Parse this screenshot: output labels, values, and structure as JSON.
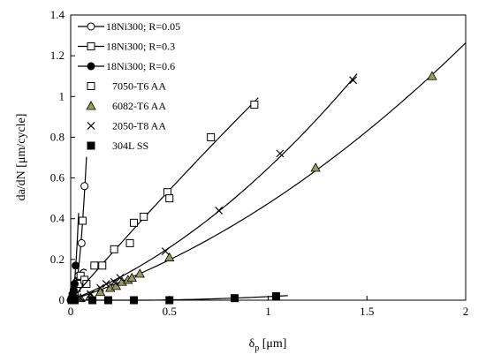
{
  "chart_data": {
    "type": "scatter",
    "xlabel_main": "δ",
    "xlabel_sub": "p",
    "xlabel_unit": " [μm]",
    "ylabel": "da/dN [μm/cycle]",
    "xlim": [
      0,
      2
    ],
    "ylim": [
      0,
      1.4
    ],
    "x_ticks": [
      "0",
      "0.5",
      "1",
      "1.5",
      "2"
    ],
    "y_ticks": [
      "0",
      "0.2",
      "0.4",
      "0.6",
      "0.8",
      "1",
      "1.2",
      "1.4"
    ],
    "grid": false,
    "legend_position": "top-left",
    "series": [
      {
        "name": "18Ni300; R=0.05",
        "marker": "circle-open",
        "line": true,
        "x": [
          0.0,
          0.005,
          0.01,
          0.015,
          0.02,
          0.03,
          0.04,
          0.055,
          0.07
        ],
        "y": [
          0.0,
          0.01,
          0.02,
          0.04,
          0.06,
          0.09,
          0.12,
          0.28,
          0.56
        ]
      },
      {
        "name": "18Ni300; R=0.3",
        "marker": "square-open",
        "line": true,
        "x": [
          0.005,
          0.01,
          0.02,
          0.03,
          0.04,
          0.05,
          0.06,
          0.07,
          0.08
        ],
        "y": [
          0.0,
          0.02,
          0.04,
          0.06,
          0.08,
          0.12,
          0.39,
          0.1,
          0.08
        ]
      },
      {
        "name": "18Ni300; R=0.6",
        "marker": "circle-filled",
        "line": true,
        "x": [
          0.002,
          0.005,
          0.01,
          0.015,
          0.02,
          0.025
        ],
        "y": [
          0.0,
          0.01,
          0.03,
          0.05,
          0.08,
          0.17
        ]
      },
      {
        "name": "7050-T6 AA",
        "marker": "square-open",
        "line": true,
        "x": [
          0.12,
          0.16,
          0.22,
          0.3,
          0.32,
          0.37,
          0.49,
          0.5,
          0.71,
          0.93
        ],
        "y": [
          0.17,
          0.17,
          0.25,
          0.28,
          0.38,
          0.41,
          0.53,
          0.5,
          0.8,
          0.96
        ]
      },
      {
        "name": "6082-T6 AA",
        "marker": "triangle-filled",
        "line": true,
        "x": [
          0.05,
          0.1,
          0.15,
          0.2,
          0.23,
          0.26,
          0.29,
          0.31,
          0.35,
          0.5,
          1.24,
          1.83
        ],
        "y": [
          0.01,
          0.02,
          0.04,
          0.06,
          0.07,
          0.09,
          0.1,
          0.11,
          0.13,
          0.21,
          0.65,
          1.1
        ]
      },
      {
        "name": "2050-T8 AA",
        "marker": "x",
        "line": true,
        "x": [
          0.05,
          0.1,
          0.15,
          0.18,
          0.22,
          0.25,
          0.48,
          0.75,
          1.06,
          1.43
        ],
        "y": [
          0.01,
          0.03,
          0.06,
          0.08,
          0.09,
          0.11,
          0.24,
          0.44,
          0.72,
          1.08
        ]
      },
      {
        "name": "304L SS",
        "marker": "square-filled",
        "line": true,
        "x": [
          0.01,
          0.02,
          0.11,
          0.19,
          0.32,
          0.5,
          0.83,
          1.04
        ],
        "y": [
          0.0,
          0.0,
          0.0,
          0.0,
          0.0,
          0.0,
          0.01,
          0.02
        ]
      }
    ]
  }
}
